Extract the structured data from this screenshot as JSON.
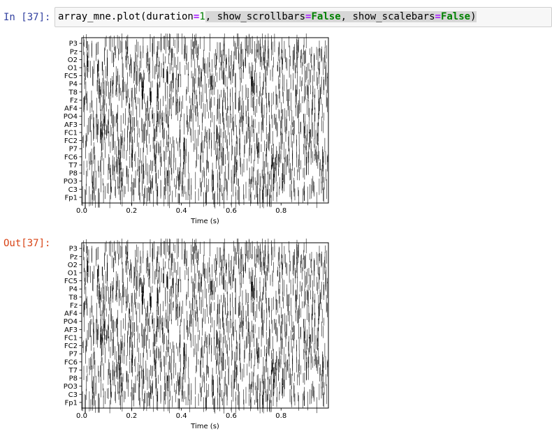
{
  "cell_input": {
    "prompt": "In [37]:",
    "code": {
      "call": "array_mne.plot(duration",
      "eq1": "=",
      "duration_value": "1",
      "sep1": ", show_scrollbars",
      "eq2": "=",
      "scrollbars_value": "False",
      "sep2": ", show_scalebars",
      "eq3": "=",
      "scalebars_value": "False",
      "close": ")"
    }
  },
  "cell_output": {
    "prompt": "Out[37]:"
  },
  "chart_data": [
    {
      "type": "line",
      "title": "",
      "xlabel": "Time (s)",
      "ylabel": "",
      "xlim": [
        0,
        0.99
      ],
      "xticks": [
        "0.0",
        "0.2",
        "0.4",
        "0.6",
        "0.8"
      ],
      "xtick_values": [
        0,
        0.2,
        0.4,
        0.6,
        0.8
      ],
      "channels": [
        "P3",
        "Pz",
        "O2",
        "O1",
        "FC5",
        "P4",
        "T8",
        "Fz",
        "AF4",
        "PO4",
        "AF3",
        "FC1",
        "FC2",
        "P7",
        "FC6",
        "T7",
        "P8",
        "PO3",
        "C3",
        "Fp1"
      ],
      "grid": false,
      "legend": "none"
    },
    {
      "type": "line",
      "title": "",
      "xlabel": "Time (s)",
      "ylabel": "",
      "xlim": [
        0,
        0.99
      ],
      "xticks": [
        "0.0",
        "0.2",
        "0.4",
        "0.6",
        "0.8"
      ],
      "xtick_values": [
        0,
        0.2,
        0.4,
        0.6,
        0.8
      ],
      "channels": [
        "P3",
        "Pz",
        "O2",
        "O1",
        "FC5",
        "P4",
        "T8",
        "Fz",
        "AF4",
        "PO4",
        "AF3",
        "FC1",
        "FC2",
        "P7",
        "FC6",
        "T7",
        "P8",
        "PO3",
        "C3",
        "Fp1"
      ],
      "grid": false,
      "legend": "none"
    }
  ]
}
